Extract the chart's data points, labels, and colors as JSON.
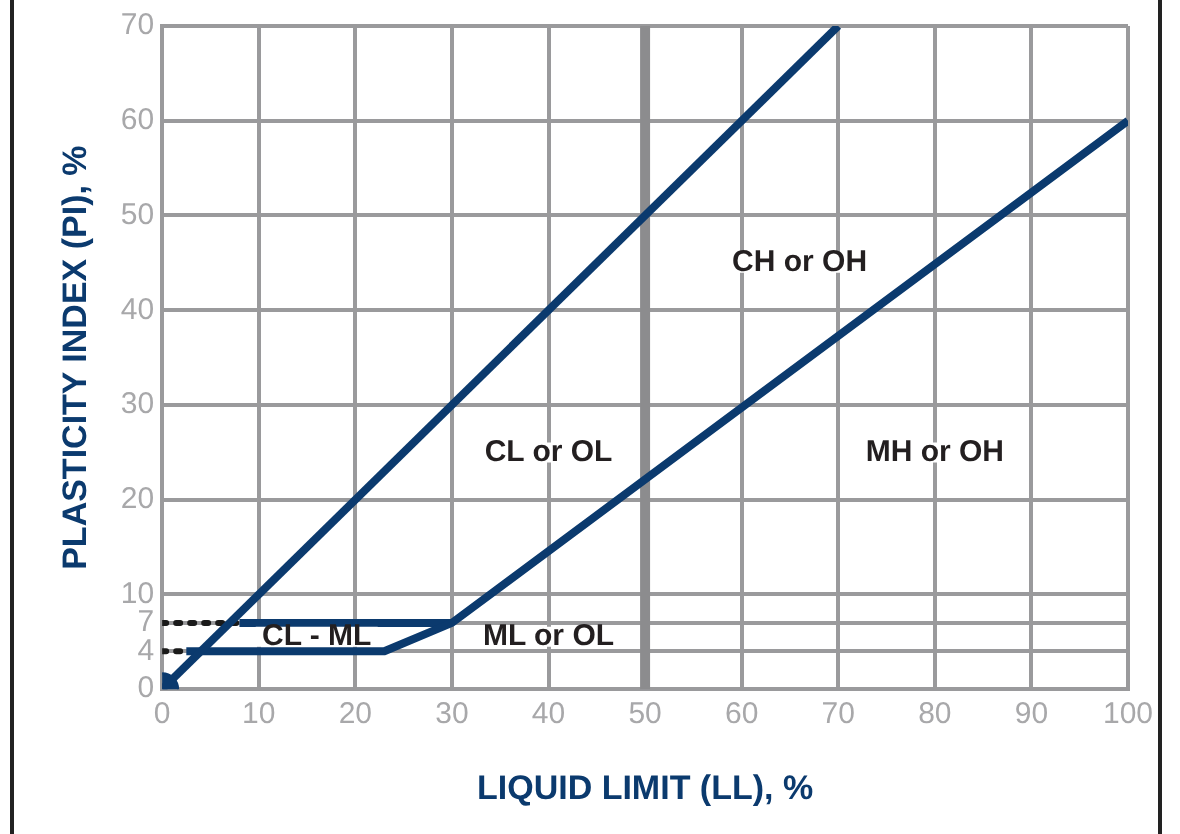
{
  "chart_data": {
    "type": "line",
    "xlabel": "LIQUID LIMIT (LL), %",
    "ylabel": "PLASTICITY INDEX (PI), %",
    "xlim": [
      0,
      100
    ],
    "xticks": [
      0,
      10,
      20,
      30,
      40,
      50,
      60,
      70,
      80,
      90,
      100
    ],
    "ylim": [
      0,
      70
    ],
    "yticks": [
      0,
      4,
      7,
      10,
      20,
      30,
      40,
      50,
      60,
      70
    ],
    "grid": true,
    "legend": false,
    "series": [
      {
        "type": "line",
        "color": "#0b3a6e",
        "x": [
          0,
          70
        ],
        "values": [
          0,
          70
        ],
        "line_style": "solid",
        "marker": "none"
      },
      {
        "type": "line",
        "color": "#0b3a6e",
        "x": [
          2.5,
          23,
          30,
          100
        ],
        "values": [
          4,
          4,
          7,
          60
        ],
        "line_style": "solid",
        "marker": "none"
      },
      {
        "type": "line",
        "color": "#0b3a6e",
        "x": [
          8,
          30
        ],
        "values": [
          7,
          7
        ],
        "line_style": "solid",
        "marker": "none"
      },
      {
        "type": "line",
        "color": "#1a1a1a",
        "x": [
          0,
          8
        ],
        "values": [
          7,
          7
        ],
        "line_style": "dotted",
        "marker": "none"
      },
      {
        "type": "line",
        "color": "#1a1a1a",
        "x": [
          0,
          2.5
        ],
        "values": [
          4,
          4
        ],
        "line_style": "dotted",
        "marker": "none"
      },
      {
        "type": "scatter",
        "color": "#0b3a6e",
        "x": [
          0
        ],
        "values": [
          0
        ],
        "marker": "circle"
      }
    ],
    "ref_lines": [
      {
        "axis": "x",
        "value": 50,
        "color": "#8c8c8e"
      }
    ],
    "annotations": [
      "CH or OH",
      "CL or OL",
      "MH or OH",
      "CL - ML",
      "ML or OL"
    ]
  }
}
